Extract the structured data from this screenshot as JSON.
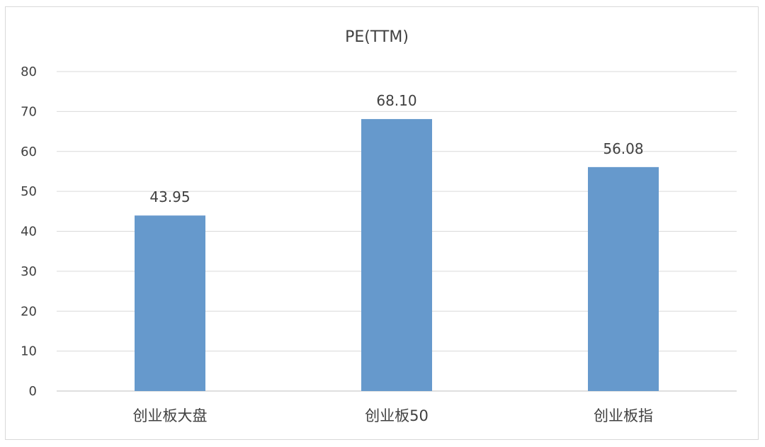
{
  "chart_data": {
    "type": "bar",
    "title": "PE(TTM)",
    "categories": [
      "创业板大盘",
      "创业板50",
      "创业板指"
    ],
    "values": [
      43.95,
      68.1,
      56.08
    ],
    "value_labels": [
      "43.95",
      "68.10",
      "56.08"
    ],
    "ylim": [
      0,
      80
    ],
    "yticks": [
      "0",
      "10",
      "20",
      "30",
      "40",
      "50",
      "60",
      "70",
      "80"
    ],
    "xlabel": "",
    "ylabel": "",
    "grid": true,
    "legend": "none",
    "bar_color": "#6699CC"
  }
}
